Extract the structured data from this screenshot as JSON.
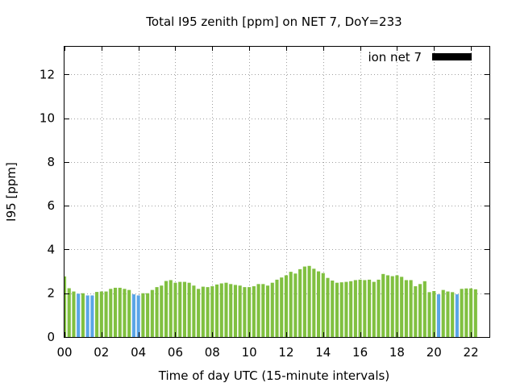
{
  "chart_data": {
    "type": "bar",
    "title": "Total I95 zenith [ppm] on NET 7, DoY=233",
    "xlabel": "Time of day UTC (15-minute intervals)",
    "ylabel": "I95 [ppm]",
    "xlim": [
      0,
      23
    ],
    "ylim": [
      0,
      13.3
    ],
    "x_ticks": [
      0,
      2,
      4,
      6,
      8,
      10,
      12,
      14,
      16,
      18,
      20,
      22
    ],
    "x_tick_labels": [
      "00",
      "02",
      "04",
      "06",
      "08",
      "10",
      "12",
      "14",
      "16",
      "18",
      "20",
      "22"
    ],
    "y_ticks": [
      0,
      2,
      4,
      6,
      8,
      10,
      12
    ],
    "y_tick_labels": [
      "0",
      "2",
      "4",
      "6",
      "8",
      "10",
      "12"
    ],
    "grid": true,
    "legend": {
      "label": "ion net 7",
      "position": "top-right",
      "color": "#000000"
    },
    "colors": {
      "normal": "#80c040",
      "low": "#5aa5e6"
    },
    "low_threshold": 2.0,
    "interval_hours": 0.25,
    "values": [
      2.77,
      2.23,
      2.08,
      1.98,
      2.0,
      1.9,
      1.9,
      2.06,
      2.08,
      2.08,
      2.2,
      2.25,
      2.25,
      2.2,
      2.15,
      1.95,
      1.9,
      2.0,
      2.0,
      2.15,
      2.28,
      2.35,
      2.56,
      2.6,
      2.48,
      2.52,
      2.52,
      2.48,
      2.35,
      2.2,
      2.3,
      2.28,
      2.32,
      2.4,
      2.45,
      2.48,
      2.42,
      2.38,
      2.35,
      2.28,
      2.28,
      2.32,
      2.42,
      2.42,
      2.35,
      2.48,
      2.62,
      2.72,
      2.82,
      2.98,
      2.9,
      3.1,
      3.22,
      3.25,
      3.12,
      3.0,
      2.92,
      2.7,
      2.58,
      2.48,
      2.5,
      2.52,
      2.55,
      2.6,
      2.62,
      2.6,
      2.62,
      2.52,
      2.62,
      2.88,
      2.82,
      2.78,
      2.82,
      2.75,
      2.6,
      2.6,
      2.32,
      2.42,
      2.55,
      2.05,
      2.1,
      1.95,
      2.15,
      2.08,
      2.05,
      1.95,
      2.2,
      2.22,
      2.22,
      2.18
    ]
  }
}
